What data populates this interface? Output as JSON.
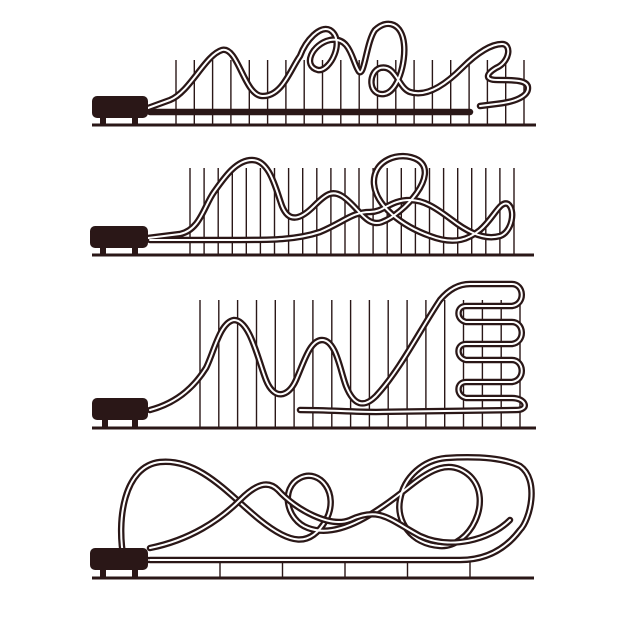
{
  "illustration": {
    "subject": "roller-coaster-silhouettes",
    "ink_color": "#2a1717",
    "background_color": "#ffffff",
    "coasters": [
      {
        "id": "coaster-1",
        "features": [
          "lift-hill",
          "loop",
          "loop",
          "helix"
        ],
        "supports": 20
      },
      {
        "id": "coaster-2",
        "features": [
          "camelback-hill",
          "hill",
          "loop",
          "wave"
        ],
        "supports": 24
      },
      {
        "id": "coaster-3",
        "features": [
          "camelback-hill",
          "camelback-hill",
          "lift-hill",
          "helix-stack"
        ],
        "supports": 18
      },
      {
        "id": "coaster-4",
        "features": [
          "crossing-loops",
          "inversion",
          "inversion"
        ],
        "supports": 5
      }
    ]
  }
}
